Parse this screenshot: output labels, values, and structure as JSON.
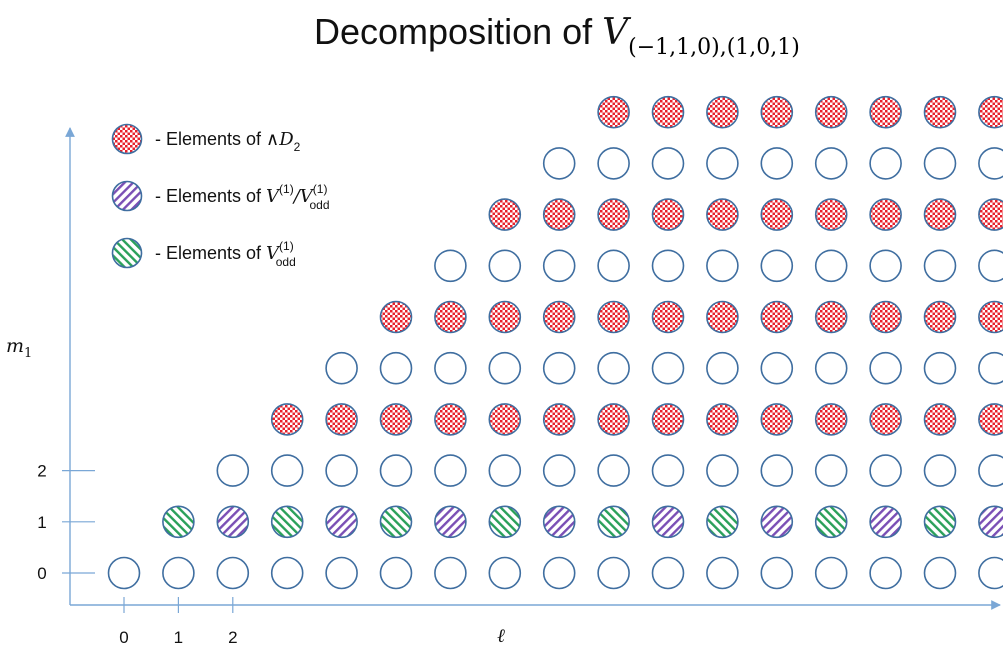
{
  "title": {
    "text": "Decomposition of ",
    "symbol": "V",
    "subscript": "(−1,1,0),(1,0,1)"
  },
  "axes": {
    "x_label": "ℓ",
    "y_label_base": "m",
    "y_label_sub": "1",
    "x_ticks": [
      "0",
      "1",
      "2"
    ],
    "y_ticks": [
      "0",
      "1",
      "2"
    ]
  },
  "legend": [
    {
      "kind": "red",
      "dash": "-",
      "prefix": "Elements of ",
      "math_base": "∧D",
      "math_sub": "2",
      "math_sup": "",
      "tail_base": "",
      "tail_sup": "",
      "tail_sub": ""
    },
    {
      "kind": "purple",
      "dash": "-",
      "prefix": "Elements of ",
      "math_base": "V",
      "math_sub": "",
      "math_sup": "(1)",
      "tail_base": "/V",
      "tail_sup": "(1)",
      "tail_sub": "odd"
    },
    {
      "kind": "green",
      "dash": "-",
      "prefix": "Elements of ",
      "math_base": "V",
      "math_sub": "odd",
      "math_sup": "(1)",
      "tail_base": "",
      "tail_sup": "",
      "tail_sub": ""
    }
  ],
  "grid": {
    "rows": [
      {
        "m": 0,
        "l_start": 0,
        "pattern": "empty",
        "count": 17
      },
      {
        "m": 1,
        "l_start": 1,
        "pattern": "alt_green_purple",
        "count": 16
      },
      {
        "m": 2,
        "l_start": 2,
        "pattern": "empty",
        "count": 15
      },
      {
        "m": 3,
        "l_start": 3,
        "pattern": "red",
        "count": 14
      },
      {
        "m": 4,
        "l_start": 4,
        "pattern": "empty",
        "count": 13
      },
      {
        "m": 5,
        "l_start": 5,
        "pattern": "red",
        "count": 12
      },
      {
        "m": 6,
        "l_start": 6,
        "pattern": "empty",
        "count": 11
      },
      {
        "m": 7,
        "l_start": 7,
        "pattern": "red",
        "count": 10
      },
      {
        "m": 8,
        "l_start": 8,
        "pattern": "empty",
        "count": 9
      },
      {
        "m": 9,
        "l_start": 9,
        "pattern": "red",
        "count": 8
      }
    ]
  },
  "colors": {
    "axis": "#7aa7d6",
    "node_outline": "#3f6ea0",
    "red": "#e8212b",
    "purple": "#7a4fb5",
    "green": "#2aa05a"
  }
}
